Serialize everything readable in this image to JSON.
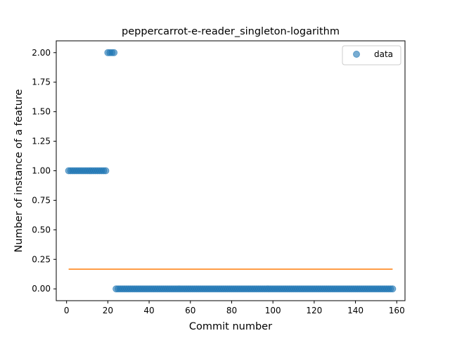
{
  "chart_data": {
    "type": "scatter",
    "title": "peppercarrot-e-reader_singleton-logarithm",
    "xlabel": "Commit number",
    "ylabel": "Number of instance of a feature",
    "xlim": [
      -5,
      164
    ],
    "ylim": [
      -0.1,
      2.1
    ],
    "xticks": [
      0,
      20,
      40,
      60,
      80,
      100,
      120,
      140,
      160
    ],
    "yticks": [
      0.0,
      0.25,
      0.5,
      0.75,
      1.0,
      1.25,
      1.5,
      1.75,
      2.0
    ],
    "ytick_labels": [
      "0.00",
      "0.25",
      "0.50",
      "0.75",
      "1.00",
      "1.25",
      "1.50",
      "1.75",
      "2.00"
    ],
    "grid": false,
    "legend": {
      "position": "top-right",
      "entries": [
        "data"
      ]
    },
    "series": [
      {
        "name": "data",
        "kind": "scatter",
        "color": "#1f77b4",
        "segments": [
          {
            "x_start": 1,
            "x_end": 19,
            "y": 1
          },
          {
            "x_start": 20,
            "x_end": 23,
            "y": 2
          },
          {
            "x_start": 24,
            "x_end": 158,
            "y": 0
          }
        ]
      },
      {
        "kind": "line",
        "color": "#ff7f0e",
        "x": [
          1,
          158
        ],
        "y": [
          0.1667,
          0.1667
        ]
      }
    ]
  }
}
